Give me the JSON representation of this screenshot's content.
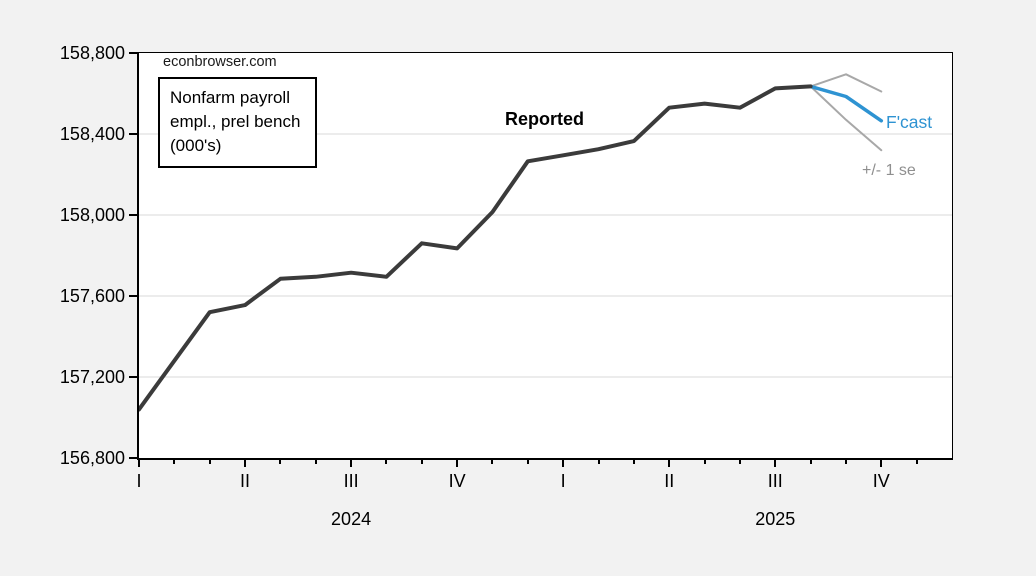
{
  "watermark": "econbrowser.com",
  "legend": {
    "lines": [
      "Nonfarm payroll",
      "empl., prel bench",
      "(000's)"
    ]
  },
  "labels": {
    "reported": "Reported",
    "fcast": "F'cast",
    "se": "+/- 1 se"
  },
  "colors": {
    "reported_line": "#3b3b3b",
    "forecast_line": "#2e93d2",
    "se_line": "#a8a8a8",
    "fcast_text": "#2e93d2",
    "se_text": "#8f8f8f",
    "grid": "#d9d9d9",
    "axis": "#000000",
    "outer_bg": "#f2f2f2",
    "plot_bg": "#ffffff"
  },
  "chart_data": {
    "type": "line",
    "title": "Nonfarm payroll empl., prel bench (000's)",
    "x": {
      "frequency": "monthly",
      "start": "2024-01",
      "axis_months": 24,
      "data_months": 22,
      "quarter_ticks": [
        {
          "label": "I",
          "month_index": 0
        },
        {
          "label": "II",
          "month_index": 3
        },
        {
          "label": "III",
          "month_index": 6
        },
        {
          "label": "IV",
          "month_index": 9
        },
        {
          "label": "I",
          "month_index": 12
        },
        {
          "label": "II",
          "month_index": 15
        },
        {
          "label": "III",
          "month_index": 18
        },
        {
          "label": "IV",
          "month_index": 21
        }
      ],
      "year_labels": [
        {
          "label": "2024",
          "month_index": 6
        },
        {
          "label": "2025",
          "month_index": 18
        }
      ]
    },
    "ylim": [
      156800,
      158800
    ],
    "yticks": [
      156800,
      157200,
      157600,
      158000,
      158400,
      158800
    ],
    "grid": "horizontal",
    "series": [
      {
        "name": "Reported",
        "color_key": "reported_line",
        "stroke_width": 4,
        "start_index": 0,
        "values": [
          157040,
          157280,
          157520,
          157555,
          157685,
          157695,
          157715,
          157695,
          157860,
          157835,
          158015,
          158265,
          158295,
          158325,
          158365,
          158530,
          158550,
          158530,
          158625,
          158635
        ]
      },
      {
        "name": "F'cast",
        "color_key": "forecast_line",
        "stroke_width": 3.5,
        "start_index": 19,
        "values": [
          158635,
          158585,
          158465
        ]
      },
      {
        "name": "+1 se",
        "color_key": "se_line",
        "stroke_width": 2,
        "start_index": 19,
        "values": [
          158635,
          158695,
          158610
        ]
      },
      {
        "name": "-1 se",
        "color_key": "se_line",
        "stroke_width": 2,
        "start_index": 19,
        "values": [
          158635,
          158470,
          158320
        ]
      }
    ]
  }
}
